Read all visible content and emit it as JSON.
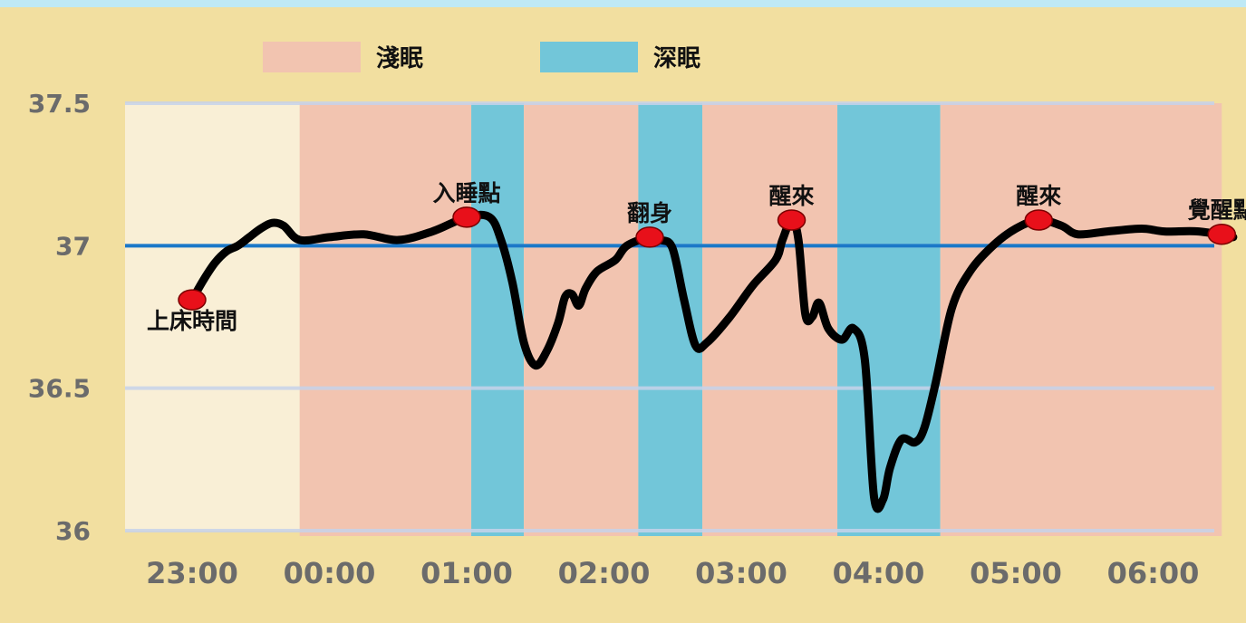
{
  "chart_data": {
    "type": "line",
    "title": "",
    "xlabel": "",
    "ylabel": "",
    "ylim": [
      36,
      37.5
    ],
    "xlim": [
      "22:15",
      "06:45"
    ],
    "y_ticks": [
      "37.5",
      "37",
      "36.5",
      "36"
    ],
    "y_tick_values": [
      37.5,
      37,
      36.5,
      36
    ],
    "x_ticks": [
      "23:00",
      "00:00",
      "01:00",
      "02:00",
      "03:00",
      "04:00",
      "05:00",
      "06:00"
    ],
    "grid": "horizontal",
    "reference_line": {
      "y": 37.0,
      "color": "#1b78c8"
    },
    "legend": {
      "placement": "top",
      "items": [
        {
          "label": "淺眠",
          "color": "#f2c4b0"
        },
        {
          "label": "深眠",
          "color": "#72c6d9"
        }
      ]
    },
    "bands": [
      {
        "type": "淺眠",
        "start": "23:47",
        "end": "01:02"
      },
      {
        "type": "深眠",
        "start": "01:02",
        "end": "01:25"
      },
      {
        "type": "淺眠",
        "start": "01:25",
        "end": "02:15"
      },
      {
        "type": "深眠",
        "start": "02:15",
        "end": "02:43"
      },
      {
        "type": "淺眠",
        "start": "02:43",
        "end": "03:42"
      },
      {
        "type": "深眠",
        "start": "03:42",
        "end": "04:27"
      },
      {
        "type": "淺眠",
        "start": "04:27",
        "end": "06:30"
      }
    ],
    "series": [
      {
        "color": "#000000",
        "points": [
          [
            "23:00",
            36.81
          ],
          [
            "23:05",
            36.88
          ],
          [
            "23:10",
            36.94
          ],
          [
            "23:15",
            36.98
          ],
          [
            "23:20",
            37.0
          ],
          [
            "23:25",
            37.03
          ],
          [
            "23:30",
            37.06
          ],
          [
            "23:35",
            37.08
          ],
          [
            "23:40",
            37.07
          ],
          [
            "23:47",
            37.02
          ],
          [
            "00:00",
            37.03
          ],
          [
            "00:15",
            37.04
          ],
          [
            "00:30",
            37.02
          ],
          [
            "00:45",
            37.05
          ],
          [
            "01:00",
            37.1
          ],
          [
            "01:10",
            37.1
          ],
          [
            "01:15",
            37.02
          ],
          [
            "01:20",
            36.87
          ],
          [
            "01:25",
            36.66
          ],
          [
            "01:30",
            36.58
          ],
          [
            "01:35",
            36.63
          ],
          [
            "01:40",
            36.73
          ],
          [
            "01:43",
            36.82
          ],
          [
            "01:46",
            36.83
          ],
          [
            "01:49",
            36.79
          ],
          [
            "01:52",
            36.85
          ],
          [
            "01:57",
            36.91
          ],
          [
            "02:05",
            36.95
          ],
          [
            "02:10",
            37.0
          ],
          [
            "02:20",
            37.03
          ],
          [
            "02:25",
            37.02
          ],
          [
            "02:30",
            36.99
          ],
          [
            "02:35",
            36.81
          ],
          [
            "02:40",
            36.65
          ],
          [
            "02:45",
            36.66
          ],
          [
            "02:55",
            36.75
          ],
          [
            "03:05",
            36.86
          ],
          [
            "03:15",
            36.95
          ],
          [
            "03:18",
            37.02
          ],
          [
            "03:22",
            37.09
          ],
          [
            "03:25",
            37.02
          ],
          [
            "03:28",
            36.76
          ],
          [
            "03:31",
            36.75
          ],
          [
            "03:34",
            36.8
          ],
          [
            "03:38",
            36.71
          ],
          [
            "03:44",
            36.67
          ],
          [
            "03:49",
            36.71
          ],
          [
            "03:54",
            36.6
          ],
          [
            "03:58",
            36.12
          ],
          [
            "04:02",
            36.11
          ],
          [
            "04:05",
            36.22
          ],
          [
            "04:10",
            36.32
          ],
          [
            "04:16",
            36.31
          ],
          [
            "04:20",
            36.36
          ],
          [
            "04:25",
            36.52
          ],
          [
            "04:32",
            36.78
          ],
          [
            "04:40",
            36.91
          ],
          [
            "04:50",
            37.0
          ],
          [
            "05:00",
            37.06
          ],
          [
            "05:10",
            37.09
          ],
          [
            "05:20",
            37.07
          ],
          [
            "05:27",
            37.04
          ],
          [
            "05:40",
            37.05
          ],
          [
            "05:55",
            37.06
          ],
          [
            "06:05",
            37.05
          ],
          [
            "06:20",
            37.05
          ],
          [
            "06:35",
            37.03
          ]
        ]
      }
    ],
    "annotations": [
      {
        "label": "上床時間",
        "time": "23:00",
        "value": 36.81,
        "label_pos": "below"
      },
      {
        "label": "入睡點",
        "time": "01:00",
        "value": 37.1,
        "label_pos": "above"
      },
      {
        "label": "翻身",
        "time": "02:20",
        "value": 37.03,
        "label_pos": "above"
      },
      {
        "label": "醒來",
        "time": "03:22",
        "value": 37.09,
        "label_pos": "above"
      },
      {
        "label": "醒來",
        "time": "05:10",
        "value": 37.09,
        "label_pos": "above"
      },
      {
        "label": "覺醒點",
        "time": "06:30",
        "value": 37.04,
        "label_pos": "above"
      }
    ]
  }
}
